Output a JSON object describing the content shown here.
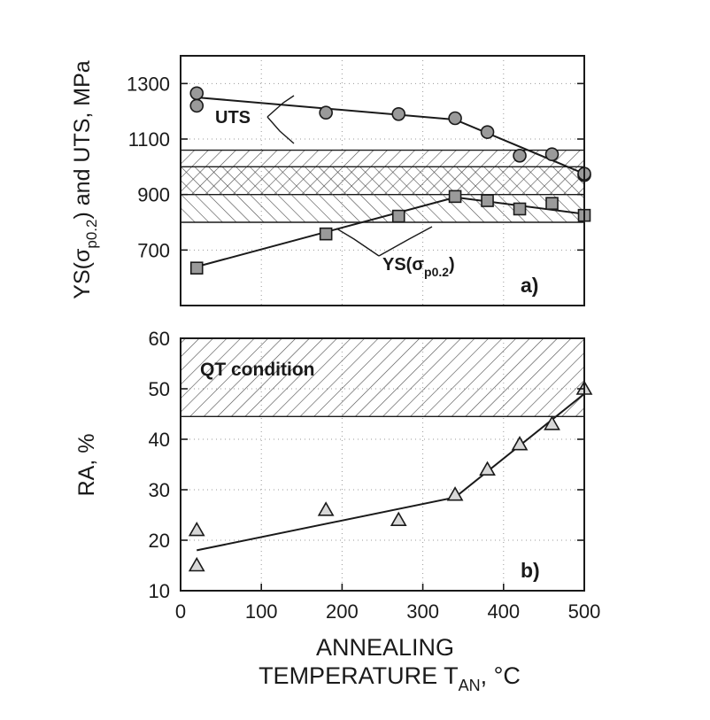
{
  "chart_data": [
    {
      "type": "scatter",
      "panel_label": "a)",
      "ylabel_main": "YS(σ",
      "ylabel_sub": "p0.2",
      "ylabel_rest": ") and UTS, MPa",
      "xlim": [
        0,
        500
      ],
      "ylim": [
        500,
        1400
      ],
      "yticks": [
        "700",
        "900",
        "1100",
        "1300"
      ],
      "ytick_values": [
        700,
        900,
        1100,
        1300
      ],
      "grid": true,
      "series": [
        {
          "name": "UTS",
          "marker": "circle",
          "points": [
            [
              20,
              1265
            ],
            [
              20,
              1220
            ],
            [
              180,
              1195
            ],
            [
              270,
              1190
            ],
            [
              340,
              1175
            ],
            [
              380,
              1125
            ],
            [
              420,
              1040
            ],
            [
              460,
              1045
            ],
            [
              500,
              970
            ],
            [
              500,
              975
            ]
          ],
          "fit": [
            [
              20,
              1250
            ],
            [
              340,
              1170
            ],
            [
              500,
              975
            ]
          ]
        },
        {
          "name_main": "YS(σ",
          "name_sub": "p0.2",
          "name_rest": ")",
          "marker": "square",
          "points": [
            [
              20,
              635
            ],
            [
              180,
              758
            ],
            [
              270,
              822
            ],
            [
              340,
              893
            ],
            [
              380,
              878
            ],
            [
              420,
              848
            ],
            [
              460,
              868
            ],
            [
              500,
              825
            ]
          ],
          "fit": [
            [
              20,
              640
            ],
            [
              340,
              890
            ],
            [
              500,
              830
            ]
          ]
        }
      ],
      "bands": [
        {
          "pattern": "hatch",
          "range": [
            900,
            1060
          ]
        },
        {
          "pattern": "backhatch",
          "range": [
            800,
            1000
          ]
        }
      ]
    },
    {
      "type": "scatter",
      "panel_label": "b)",
      "ylabel": "RA, %",
      "xlabel_main": "ANNEALING",
      "xlabel_line2": "TEMPERATURE T",
      "xlabel_sub": "AN",
      "xlabel_rest": ", °C",
      "xlim": [
        0,
        500
      ],
      "ylim": [
        10,
        60
      ],
      "xticks": [
        "0",
        "100",
        "200",
        "300",
        "400",
        "500"
      ],
      "xtick_values": [
        0,
        100,
        200,
        300,
        400,
        500
      ],
      "yticks": [
        "10",
        "20",
        "30",
        "40",
        "50",
        "60"
      ],
      "ytick_values": [
        10,
        20,
        30,
        40,
        50,
        60
      ],
      "grid": true,
      "series": [
        {
          "name": "RA",
          "marker": "triangle",
          "points": [
            [
              20,
              22
            ],
            [
              20,
              15
            ],
            [
              180,
              26
            ],
            [
              270,
              24
            ],
            [
              340,
              29
            ],
            [
              380,
              34
            ],
            [
              420,
              39
            ],
            [
              460,
              43
            ],
            [
              500,
              50
            ]
          ],
          "fit": [
            [
              20,
              18
            ],
            [
              340,
              28.5
            ],
            [
              500,
              49
            ]
          ]
        }
      ],
      "band_label": "QT condition",
      "bands": [
        {
          "pattern": "hatch",
          "range": [
            44.5,
            60
          ]
        }
      ]
    }
  ]
}
